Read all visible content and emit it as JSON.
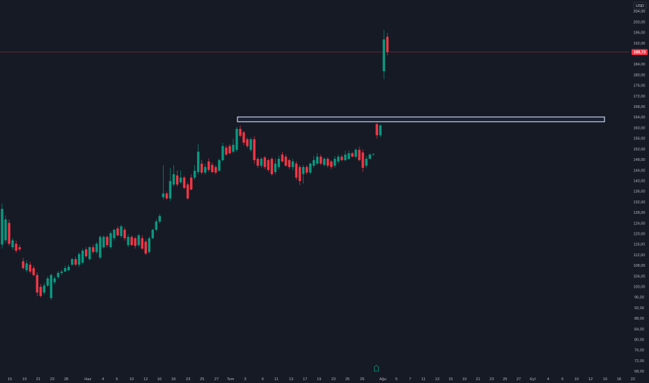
{
  "chart_data": {
    "type": "candlestick",
    "currency": "USD",
    "up_color": "#089981",
    "down_color": "#f23645",
    "ohlc": [
      [
        116.0,
        131.5,
        114.5,
        129.5
      ],
      [
        117.6,
        127,
        116.5,
        125.5
      ],
      [
        124.2,
        125.5,
        115.5,
        116.3
      ],
      [
        115.0,
        118.5,
        114,
        117.6
      ],
      [
        116.3,
        117.5,
        113,
        113.7
      ],
      [
        115,
        116,
        113.5,
        114.2
      ],
      [
        109.7,
        111,
        106.5,
        107.1
      ],
      [
        106.3,
        110,
        105.5,
        108.9
      ],
      [
        108.4,
        109.5,
        105,
        105.8
      ],
      [
        107.1,
        108,
        104,
        104.5
      ],
      [
        104.5,
        105.5,
        96.5,
        97.9
      ],
      [
        100,
        101,
        96,
        96.6
      ],
      [
        97.9,
        101.5,
        97,
        100.5
      ],
      [
        100.5,
        104,
        100,
        103.2
      ],
      [
        95.8,
        105,
        95,
        104.5
      ],
      [
        101.8,
        104,
        101,
        103.2
      ],
      [
        103.7,
        106,
        103,
        105.3
      ],
      [
        105.3,
        106.5,
        104.5,
        105.8
      ],
      [
        105.8,
        108,
        105.5,
        107.1
      ],
      [
        106.3,
        108.5,
        106,
        107.6
      ],
      [
        108.4,
        111,
        108,
        110.5
      ],
      [
        110.5,
        111.5,
        108,
        108.4
      ],
      [
        108.4,
        113,
        107.5,
        112.4
      ],
      [
        109.2,
        114.5,
        108.5,
        113.7
      ],
      [
        114.2,
        115,
        111,
        111.6
      ],
      [
        110.5,
        115.5,
        110,
        115.0
      ],
      [
        115,
        116,
        112.5,
        113.2
      ],
      [
        113.2,
        117,
        112.5,
        116.3
      ],
      [
        111.1,
        119.5,
        110.5,
        118.9
      ],
      [
        115.0,
        119.5,
        114.5,
        118.9
      ],
      [
        118.9,
        119.5,
        115,
        115.8
      ],
      [
        115.0,
        121,
        114.5,
        120.3
      ],
      [
        118.4,
        122,
        117.5,
        121.6
      ],
      [
        122.1,
        123,
        119,
        119.5
      ],
      [
        119.2,
        123.5,
        118.5,
        122.9
      ],
      [
        121.6,
        122.5,
        117.5,
        118.4
      ],
      [
        115.8,
        120,
        115,
        118.9
      ],
      [
        118.9,
        119.5,
        115.5,
        115.8
      ],
      [
        118.4,
        119,
        114.5,
        115.5
      ],
      [
        115.8,
        120,
        115,
        119.5
      ],
      [
        118.4,
        119.5,
        114,
        114.5
      ],
      [
        117.1,
        118,
        112,
        112.6
      ],
      [
        113.2,
        119,
        112.5,
        118.4
      ],
      [
        118.4,
        122,
        118,
        121.6
      ],
      [
        121.6,
        125.5,
        121,
        124.7
      ],
      [
        124.7,
        127.5,
        124,
        126.8
      ],
      [
        133.9,
        146,
        133,
        135.3
      ],
      [
        135.3,
        136,
        133,
        133.4
      ],
      [
        133.4,
        145,
        132.5,
        140.0
      ],
      [
        138.7,
        146,
        138,
        142.6
      ],
      [
        142.1,
        144,
        138,
        138.7
      ],
      [
        139.5,
        144,
        139,
        141.3
      ],
      [
        141.3,
        142,
        137,
        137.4
      ],
      [
        138.7,
        139.5,
        133,
        133.4
      ],
      [
        141.3,
        142.5,
        136.5,
        136.8
      ],
      [
        141.3,
        146,
        140.5,
        143.9
      ],
      [
        143.4,
        154,
        142.5,
        151.1
      ],
      [
        146.6,
        148,
        142.5,
        143.2
      ],
      [
        143.2,
        146.5,
        142.5,
        145.3
      ],
      [
        147.4,
        148.5,
        143.5,
        144.2
      ],
      [
        146.1,
        147,
        143,
        143.4
      ],
      [
        145.3,
        146,
        142.5,
        143.2
      ],
      [
        143.9,
        148.5,
        143.5,
        147.9
      ],
      [
        147.9,
        154.5,
        147.5,
        153.2
      ],
      [
        152.6,
        153.5,
        149.5,
        150
      ],
      [
        153.2,
        154,
        150,
        150.5
      ],
      [
        151.1,
        156,
        150.5,
        153.7
      ],
      [
        151.8,
        160.5,
        151,
        159.7
      ],
      [
        159.7,
        161,
        156.5,
        157.1
      ],
      [
        158.4,
        159,
        153.5,
        154.5
      ],
      [
        155.8,
        156.5,
        152.5,
        153.2
      ],
      [
        151.8,
        156.5,
        151,
        155.8
      ],
      [
        155.8,
        157,
        146.5,
        147.9
      ],
      [
        148.4,
        149,
        145,
        145.8
      ],
      [
        145.8,
        149,
        145,
        148.4
      ],
      [
        148.9,
        149.5,
        144.5,
        145.3
      ],
      [
        147.9,
        148.5,
        143.5,
        144.2
      ],
      [
        148.4,
        149,
        142,
        142.6
      ],
      [
        143.4,
        148.5,
        142.5,
        146.6
      ],
      [
        145.3,
        149.5,
        144.5,
        148.4
      ],
      [
        150.0,
        151,
        147,
        147.4
      ],
      [
        149.2,
        150,
        145.5,
        145.8
      ],
      [
        147.9,
        148.5,
        144.5,
        145.3
      ],
      [
        145.3,
        148.5,
        144,
        147.4
      ],
      [
        146.6,
        147.5,
        140.5,
        141.3
      ],
      [
        145.3,
        146,
        138.5,
        140.0
      ],
      [
        142.6,
        146,
        139,
        145.3
      ],
      [
        145.3,
        146,
        142.5,
        143.2
      ],
      [
        143.2,
        147,
        142.5,
        146.6
      ],
      [
        145.8,
        149.5,
        145,
        147.9
      ],
      [
        146.6,
        150.5,
        146,
        149.2
      ],
      [
        149.2,
        150,
        146,
        146.6
      ],
      [
        146.1,
        149,
        145.5,
        148.4
      ],
      [
        148.4,
        149,
        145,
        145.8
      ],
      [
        147.4,
        148,
        144.5,
        145.3
      ],
      [
        145.8,
        149.5,
        145,
        148.4
      ],
      [
        147.4,
        150,
        146.5,
        149.2
      ],
      [
        149.2,
        150,
        147.5,
        147.9
      ],
      [
        147.9,
        151.5,
        147.5,
        150.0
      ],
      [
        148.4,
        151.5,
        148,
        150.5
      ],
      [
        150.5,
        151,
        149,
        149.2
      ],
      [
        149.2,
        152.5,
        148.5,
        151.8
      ],
      [
        151.8,
        153,
        147.5,
        147.9
      ],
      [
        150.8,
        152,
        143.5,
        145.0
      ],
      [
        145.8,
        149.5,
        145,
        148.4
      ],
      [
        148.4,
        150.5,
        148,
        150.0
      ],
      [
        150,
        150.5,
        149.5,
        150.2
      ],
      [
        161.5,
        162,
        156,
        157.3
      ],
      [
        157.3,
        161.5,
        156.5,
        161.0
      ],
      [
        181.5,
        197,
        178.5,
        193.5
      ],
      [
        194.5,
        196,
        187.5,
        188.73
      ]
    ],
    "last_price": {
      "value": 188.73,
      "label": "188,73"
    },
    "zone": {
      "x": [
        67.2,
        172.0
      ],
      "y": [
        162.4,
        164.2
      ]
    },
    "xlim": [
      -0.6,
      184.7
    ],
    "xticks": [
      {
        "value": 2.2,
        "label": "15"
      },
      {
        "value": 6.4,
        "label": "19"
      },
      {
        "value": 10.3,
        "label": "21"
      },
      {
        "value": 14.3,
        "label": "23"
      },
      {
        "value": 18.3,
        "label": "28"
      },
      {
        "value": 24.5,
        "label": "Haz"
      },
      {
        "value": 28.8,
        "label": "4"
      },
      {
        "value": 32.8,
        "label": "6"
      },
      {
        "value": 37.0,
        "label": "10"
      },
      {
        "value": 41.0,
        "label": "12"
      },
      {
        "value": 44.9,
        "label": "16"
      },
      {
        "value": 48.9,
        "label": "18"
      },
      {
        "value": 53.1,
        "label": "23"
      },
      {
        "value": 57.1,
        "label": "25"
      },
      {
        "value": 61.2,
        "label": "27"
      },
      {
        "value": 65.2,
        "label": "Tem"
      },
      {
        "value": 69.4,
        "label": "3"
      },
      {
        "value": 74.4,
        "label": "9"
      },
      {
        "value": 78.3,
        "label": "11"
      },
      {
        "value": 82.5,
        "label": "13"
      },
      {
        "value": 86.5,
        "label": "17"
      },
      {
        "value": 90.5,
        "label": "19"
      },
      {
        "value": 94.6,
        "label": "23"
      },
      {
        "value": 98.6,
        "label": "25"
      },
      {
        "value": 102.8,
        "label": "29"
      },
      {
        "value": 108.7,
        "label": "Ağu"
      },
      {
        "value": 112.6,
        "label": "5"
      },
      {
        "value": 116.5,
        "label": "7"
      },
      {
        "value": 120.3,
        "label": "11"
      },
      {
        "value": 124.2,
        "label": "13"
      },
      {
        "value": 128.1,
        "label": "15"
      },
      {
        "value": 132.0,
        "label": "19"
      },
      {
        "value": 135.9,
        "label": "21"
      },
      {
        "value": 139.8,
        "label": "23"
      },
      {
        "value": 143.6,
        "label": "25"
      },
      {
        "value": 147.5,
        "label": "27"
      },
      {
        "value": 151.5,
        "label": "Eyl"
      },
      {
        "value": 155.9,
        "label": "4"
      },
      {
        "value": 160.0,
        "label": "6"
      },
      {
        "value": 164.0,
        "label": "10"
      },
      {
        "value": 168.0,
        "label": "12"
      },
      {
        "value": 172.2,
        "label": "16"
      },
      {
        "value": 176.1,
        "label": "18"
      },
      {
        "value": 180.1,
        "label": "22"
      }
    ],
    "ylim": [
      63.7,
      208.4
    ],
    "yticks": [
      {
        "value": 204,
        "label": "204,00"
      },
      {
        "value": 200,
        "label": "200,00"
      },
      {
        "value": 196,
        "label": "196,00"
      },
      {
        "value": 192,
        "label": "192,00"
      },
      {
        "value": 184,
        "label": "184,00"
      },
      {
        "value": 180,
        "label": "180,00"
      },
      {
        "value": 176,
        "label": "176,00"
      },
      {
        "value": 172,
        "label": "172,00"
      },
      {
        "value": 168,
        "label": "168,00"
      },
      {
        "value": 164,
        "label": "164,00"
      },
      {
        "value": 160,
        "label": "160,00"
      },
      {
        "value": 156,
        "label": "156,00"
      },
      {
        "value": 152,
        "label": "152,00"
      },
      {
        "value": 148,
        "label": "148,00"
      },
      {
        "value": 144,
        "label": "144,00"
      },
      {
        "value": 140,
        "label": "140,00"
      },
      {
        "value": 136,
        "label": "136,00"
      },
      {
        "value": 132,
        "label": "132,00"
      },
      {
        "value": 128,
        "label": "128,00"
      },
      {
        "value": 124,
        "label": "124,00"
      },
      {
        "value": 120,
        "label": "120,00"
      },
      {
        "value": 116,
        "label": "116,00"
      },
      {
        "value": 112,
        "label": "112,00"
      },
      {
        "value": 108,
        "label": "108,00"
      },
      {
        "value": 104,
        "label": "104,00"
      },
      {
        "value": 100,
        "label": "100,00"
      },
      {
        "value": 96,
        "label": "96,00"
      },
      {
        "value": 92,
        "label": "92,00"
      },
      {
        "value": 88,
        "label": "88,00"
      },
      {
        "value": 84,
        "label": "84,00"
      },
      {
        "value": 80,
        "label": "80,00"
      },
      {
        "value": 76,
        "label": "76,00"
      },
      {
        "value": 72,
        "label": "72,00"
      },
      {
        "value": 68,
        "label": "68,00"
      }
    ],
    "grid": false
  }
}
